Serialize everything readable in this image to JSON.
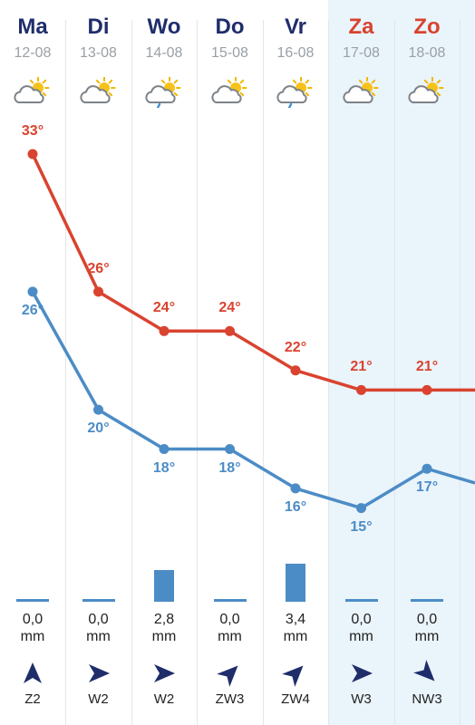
{
  "colors": {
    "high": "#d9432f",
    "low": "#4c8cc6",
    "precip": "#4c8cc6",
    "weekend_bg": "#eaf4fb",
    "weekday_title": "#1f2d6b",
    "weekend_title": "#d9432f",
    "wind": "#1f2d6b"
  },
  "days": [
    {
      "day": "Ma",
      "date": "12-08",
      "icon": "partly-cloudy-sun-icon",
      "high": 33,
      "high_label": "33°",
      "low": 26,
      "low_label": "26°",
      "precip_mm": 0.0,
      "precip_value": "0,0",
      "precip_unit": "mm",
      "wind_dir_deg": 180,
      "wind_label": "Z2",
      "weekend": false
    },
    {
      "day": "Di",
      "date": "13-08",
      "icon": "partly-cloudy-sun-icon",
      "high": 26,
      "high_label": "26°",
      "low": 20,
      "low_label": "20°",
      "precip_mm": 0.0,
      "precip_value": "0,0",
      "precip_unit": "mm",
      "wind_dir_deg": 270,
      "wind_label": "W2",
      "weekend": false
    },
    {
      "day": "Wo",
      "date": "14-08",
      "icon": "cloud-sun-rain-icon",
      "high": 24,
      "high_label": "24°",
      "low": 18,
      "low_label": "18°",
      "precip_mm": 2.8,
      "precip_value": "2,8",
      "precip_unit": "mm",
      "wind_dir_deg": 270,
      "wind_label": "W2",
      "weekend": false
    },
    {
      "day": "Do",
      "date": "15-08",
      "icon": "partly-cloudy-sun-icon",
      "high": 24,
      "high_label": "24°",
      "low": 18,
      "low_label": "18°",
      "precip_mm": 0.0,
      "precip_value": "0,0",
      "precip_unit": "mm",
      "wind_dir_deg": 225,
      "wind_label": "ZW3",
      "weekend": false
    },
    {
      "day": "Vr",
      "date": "16-08",
      "icon": "cloud-sun-rain-icon",
      "high": 22,
      "high_label": "22°",
      "low": 16,
      "low_label": "16°",
      "precip_mm": 3.4,
      "precip_value": "3,4",
      "precip_unit": "mm",
      "wind_dir_deg": 225,
      "wind_label": "ZW4",
      "weekend": false
    },
    {
      "day": "Za",
      "date": "17-08",
      "icon": "partly-cloudy-sun-icon",
      "high": 21,
      "high_label": "21°",
      "low": 15,
      "low_label": "15°",
      "precip_mm": 0.0,
      "precip_value": "0,0",
      "precip_unit": "mm",
      "wind_dir_deg": 270,
      "wind_label": "W3",
      "weekend": true
    },
    {
      "day": "Zo",
      "date": "18-08",
      "icon": "partly-cloudy-sun-icon",
      "high": 21,
      "high_label": "21°",
      "low": 17,
      "low_label": "17°",
      "precip_mm": 0.0,
      "precip_value": "0,0",
      "precip_unit": "mm",
      "wind_dir_deg": 315,
      "wind_label": "NW3",
      "weekend": true
    }
  ]
}
